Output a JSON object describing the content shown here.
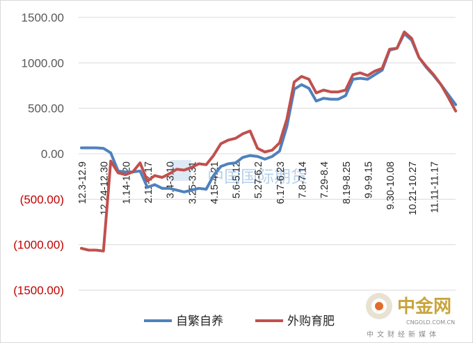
{
  "chart_data": {
    "type": "line",
    "title": "",
    "xlabel": "",
    "ylabel": "",
    "ylim": [
      -1500,
      1500
    ],
    "yticks": [
      {
        "value": 1500,
        "label": "1500.00",
        "color": "#595959"
      },
      {
        "value": 1000,
        "label": "1000.00",
        "color": "#595959"
      },
      {
        "value": 500,
        "label": "500.00",
        "color": "#595959"
      },
      {
        "value": 0,
        "label": "0.00",
        "color": "#595959"
      },
      {
        "value": -500,
        "label": "(500.00)",
        "color": "#c00000"
      },
      {
        "value": -1000,
        "label": "(1000.00)",
        "color": "#c00000"
      },
      {
        "value": -1500,
        "label": "(1500.00)",
        "color": "#c00000"
      }
    ],
    "x_count": 53,
    "x_ticks": [
      {
        "index": 0,
        "label": "12.3-12.9"
      },
      {
        "index": 3,
        "label": "12.24-12.30"
      },
      {
        "index": 6,
        "label": "1.14-1.20"
      },
      {
        "index": 9,
        "label": "2.11-2.17"
      },
      {
        "index": 12,
        "label": "3.4-3.10"
      },
      {
        "index": 15,
        "label": "3.25-3.31"
      },
      {
        "index": 18,
        "label": "4.15-4.21"
      },
      {
        "index": 21,
        "label": "5.6-5.12"
      },
      {
        "index": 24,
        "label": "5.27-6.2"
      },
      {
        "index": 27,
        "label": "6.17-6.23"
      },
      {
        "index": 30,
        "label": "7.8-7.14"
      },
      {
        "index": 33,
        "label": "7.29-8.4"
      },
      {
        "index": 36,
        "label": "8.19-8.25"
      },
      {
        "index": 39,
        "label": "9.9-9.15"
      },
      {
        "index": 42,
        "label": "9.30-10.08"
      },
      {
        "index": 45,
        "label": "10.21-10.27"
      },
      {
        "index": 48,
        "label": "11.11-11.17"
      }
    ],
    "series": [
      {
        "name": "自繁自养",
        "color": "#4f81bd",
        "values": [
          65,
          65,
          65,
          60,
          10,
          -190,
          -200,
          -200,
          -190,
          -370,
          -340,
          -380,
          -380,
          -400,
          -420,
          -400,
          -380,
          -390,
          -240,
          -140,
          -110,
          -100,
          -40,
          -20,
          -30,
          -60,
          -30,
          30,
          300,
          710,
          760,
          720,
          580,
          610,
          600,
          600,
          640,
          820,
          830,
          820,
          870,
          920,
          1140,
          1160,
          1320,
          1250,
          1060,
          950,
          860,
          760,
          650,
          540
        ]
      },
      {
        "name": "外购育肥",
        "color": "#c0504d",
        "values": [
          -1040,
          -1060,
          -1060,
          -1070,
          -80,
          -210,
          -230,
          -200,
          -100,
          -300,
          -240,
          -260,
          -220,
          -170,
          -180,
          -150,
          -110,
          -120,
          -20,
          110,
          150,
          170,
          220,
          250,
          60,
          20,
          40,
          120,
          380,
          790,
          850,
          820,
          670,
          700,
          680,
          680,
          700,
          870,
          890,
          860,
          910,
          940,
          1150,
          1160,
          1340,
          1270,
          1060,
          960,
          870,
          760,
          620,
          470
        ]
      }
    ],
    "grid": true,
    "legend": "bottom"
  },
  "watermark": {
    "center_text": "中国国际期货",
    "logo_main": "中金网",
    "logo_url": "CNGOLD.COM.CN",
    "logo_sub": "中文财经新媒体"
  }
}
